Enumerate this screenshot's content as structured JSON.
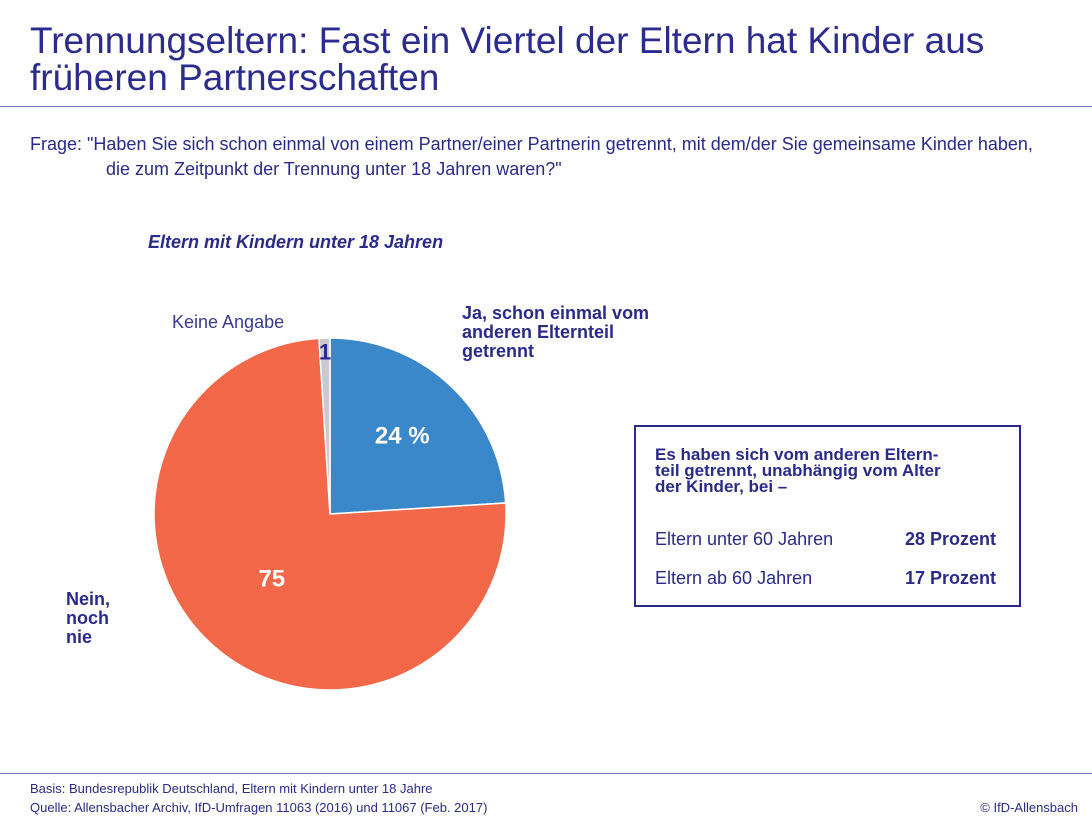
{
  "chart_data": {
    "type": "pie",
    "title": "Trennungseltern: Fast ein Viertel der Eltern hat Kinder aus früheren Partnerschaften",
    "question": "Frage: \"Haben Sie sich schon einmal von einem Partner/einer Partnerin getrennt, mit dem/der Sie gemeinsame Kinder haben, die zum Zeitpunkt der Trennung unter 18 Jahren waren?\"",
    "subtitle": "Eltern mit Kindern unter 18 Jahren",
    "categories": [
      "Ja, schon einmal vom anderen Elternteil getrennt",
      "Nein, noch nie",
      "Keine Angabe"
    ],
    "values": [
      24,
      75,
      1
    ],
    "value_labels": [
      "24 %",
      "75",
      "1"
    ],
    "colors": [
      "#3a88c9",
      "#f26849",
      "#c9c9cf"
    ]
  },
  "box": {
    "heading": [
      "Es haben sich vom anderen Eltern-",
      "teil getrennt, unabhängig vom Alter",
      "der Kinder, bei –"
    ],
    "rows": [
      {
        "label": "Eltern unter 60 Jahren",
        "value": "28 Prozent"
      },
      {
        "label": "Eltern ab 60 Jahren",
        "value": "17 Prozent"
      }
    ]
  },
  "footer": {
    "basis": "Basis: Bundesrepublik Deutschland, Eltern mit Kindern unter 18 Jahre",
    "source": "Quelle: Allensbacher Archiv, IfD-Umfragen 11063 (2016) und 11067 (Feb. 2017)",
    "copyright": "© IfD-Allensbach"
  }
}
